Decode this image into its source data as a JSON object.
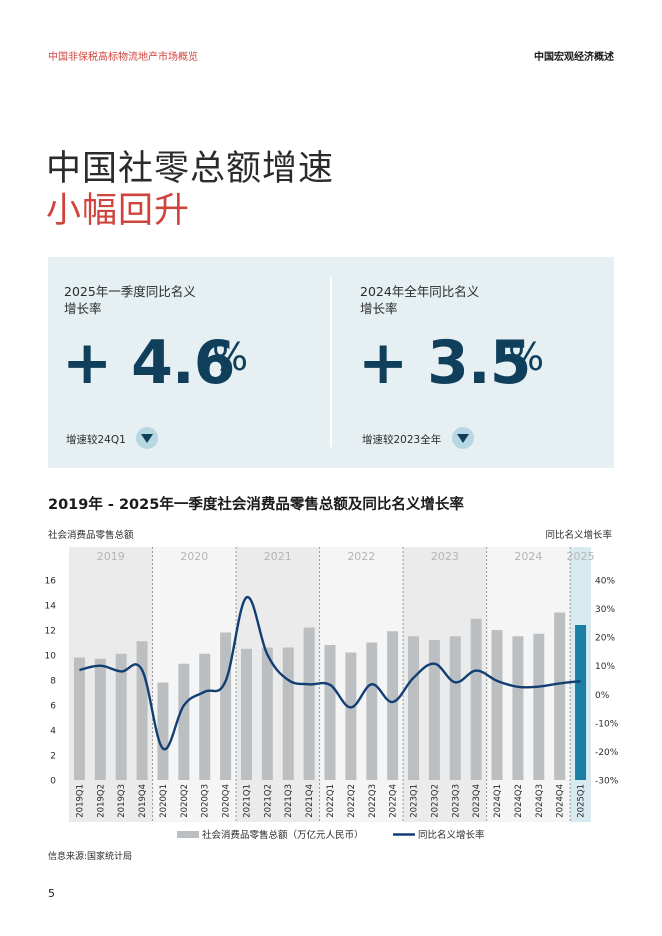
{
  "header": {
    "left": "中国非保税高标物流地产市场概览",
    "right": "中国宏观经济概述"
  },
  "title": {
    "line1": "中国社零总额增速",
    "line2": "小幅回升"
  },
  "kpis": [
    {
      "label_line1": "2025年一季度同比名义",
      "label_line2": "增长率",
      "value": "+ 4.6",
      "unit": "%",
      "compare": "增速较24Q1"
    },
    {
      "label_line1": "2024年全年同比名义",
      "label_line2": "增长率",
      "value": "+ 3.5",
      "unit": "%",
      "compare": "增速较2023全年"
    }
  ],
  "chart_title": "2019年 - 2025年一季度社会消费品零售总额及同比名义增长率",
  "axis_left_title": "社会消费品零售总额",
  "axis_right_title": "同比名义增长率",
  "source": "信息来源:国家统计局",
  "page_number": "5",
  "colors": {
    "accent_red": "#d0443e",
    "navy": "#103f5c",
    "bar_gray": "#bcbfc1",
    "bar_highlight": "#1a7fa3",
    "line": "#123f73",
    "panel_bg": "#e6eff2"
  },
  "chart_data": {
    "type": "bar",
    "categories": [
      "2019Q1",
      "2019Q2",
      "2019Q3",
      "2019Q4",
      "2020Q1",
      "2020Q2",
      "2020Q3",
      "2020Q4",
      "2021Q1",
      "2021Q2",
      "2021Q3",
      "2021Q4",
      "2022Q1",
      "2022Q2",
      "2022Q3",
      "2022Q4",
      "2023Q1",
      "2023Q2",
      "2023Q3",
      "2023Q4",
      "2024Q1",
      "2024Q2",
      "2024Q3",
      "2024Q4",
      "2025Q1"
    ],
    "year_groups": [
      {
        "label": "2019",
        "start": 0,
        "count": 4
      },
      {
        "label": "2020",
        "start": 4,
        "count": 4
      },
      {
        "label": "2021",
        "start": 8,
        "count": 4
      },
      {
        "label": "2022",
        "start": 12,
        "count": 4
      },
      {
        "label": "2023",
        "start": 16,
        "count": 4
      },
      {
        "label": "2024",
        "start": 20,
        "count": 4
      },
      {
        "label": "2025",
        "start": 24,
        "count": 1
      }
    ],
    "series": [
      {
        "name": "社会消费品零售总额（万亿元人民币）",
        "type": "bar",
        "axis": "left",
        "values": [
          9.8,
          9.7,
          10.1,
          11.1,
          7.8,
          9.3,
          10.1,
          11.8,
          10.5,
          10.6,
          10.6,
          12.2,
          10.8,
          10.2,
          11.0,
          11.9,
          11.5,
          11.2,
          11.5,
          12.9,
          12.0,
          11.5,
          11.7,
          13.4,
          12.4
        ]
      },
      {
        "name": "同比名义增长率",
        "type": "line",
        "axis": "right",
        "values": [
          8.5,
          10.0,
          8.0,
          8.5,
          -19.0,
          -3.9,
          0.9,
          4.6,
          33.9,
          13.9,
          5.0,
          3.5,
          3.3,
          -4.6,
          3.5,
          -2.7,
          5.8,
          10.7,
          4.2,
          8.3,
          4.7,
          2.6,
          2.7,
          3.8,
          4.6
        ]
      }
    ],
    "y_left": {
      "min": 0,
      "max": 16,
      "ticks": [
        "0",
        "2",
        "4",
        "6",
        "8",
        "10",
        "12",
        "14",
        "16"
      ]
    },
    "y_right": {
      "min": -30,
      "max": 40,
      "ticks": [
        "-30%",
        "-20%",
        "-10%",
        "0%",
        "10%",
        "20%",
        "30%",
        "40%"
      ]
    },
    "legend_position": "bottom",
    "grid": false
  }
}
